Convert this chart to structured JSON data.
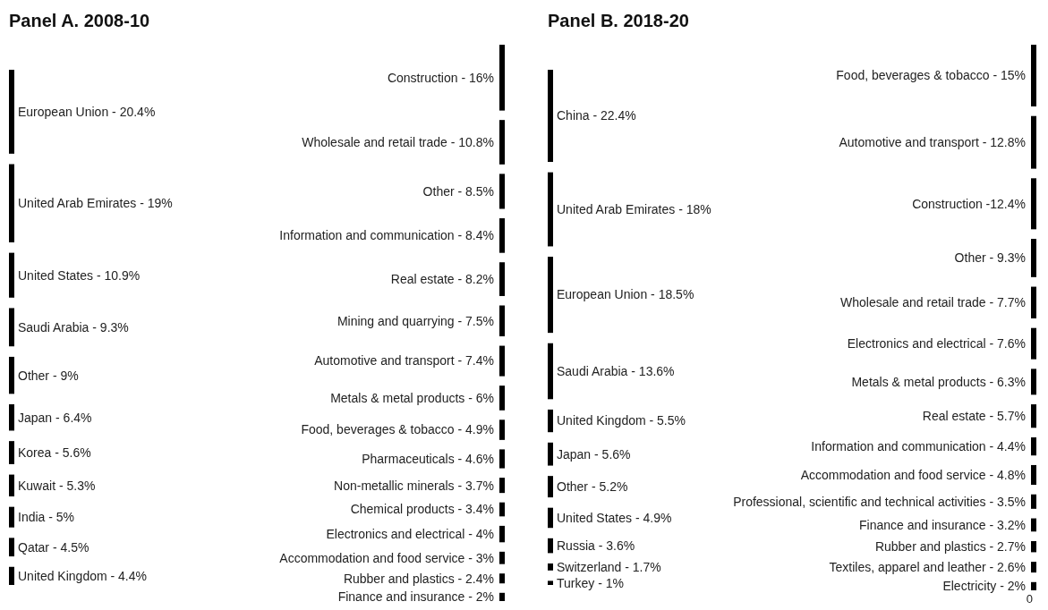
{
  "chart_data": [
    {
      "type": "other",
      "title": "Panel A. 2008-10",
      "color": "#000000",
      "categories": [
        "European Union - ",
        "United Arab Emirates - ",
        "United States - ",
        "Saudi Arabia - ",
        "Other - ",
        "Japan - ",
        "Korea - ",
        "Kuwait - ",
        "India - ",
        "Qatar - ",
        "United Kingdom - "
      ],
      "values": [
        20.4,
        19,
        10.9,
        9.3,
        9,
        6.4,
        5.6,
        5.3,
        5,
        4.5,
        4.4
      ],
      "value_labels": [
        "20.4%",
        "19%",
        "10.9%",
        "9.3%",
        "9%",
        "6.4%",
        "5.6%",
        "5.3%",
        "5%",
        "4.5%",
        "4.4%"
      ]
    },
    {
      "type": "other",
      "color": "#000000",
      "categories": [
        "Construction - ",
        "Wholesale and retail trade - ",
        "Other - ",
        "Information and communication - ",
        "Real estate - ",
        "Mining and quarrying - ",
        "Automotive and transport - ",
        "Metals & metal products - ",
        "Food, beverages & tobacco - ",
        "Pharmaceuticals - ",
        "Non-metallic minerals - ",
        "Chemical products - ",
        "Electronics and electrical - ",
        "Accommodation and food service - ",
        "Rubber and plastics - ",
        "Finance and insurance - "
      ],
      "values": [
        16,
        10.8,
        8.5,
        8.4,
        8.2,
        7.5,
        7.4,
        6,
        4.9,
        4.6,
        3.7,
        3.4,
        4,
        3,
        2.4,
        2
      ],
      "value_labels": [
        "16%",
        "10.8%",
        "8.5%",
        "8.4%",
        "8.2%",
        "7.5%",
        "7.4%",
        "6%",
        "4.9%",
        "4.6%",
        "3.7%",
        "3.4%",
        "4%",
        "3%",
        "2.4%",
        "2%"
      ]
    },
    {
      "type": "other",
      "title": "Panel B. 2018-20",
      "color": "#000000",
      "categories": [
        "China - ",
        "United Arab Emirates - ",
        "European Union - ",
        "Saudi Arabia - ",
        "United Kingdom - ",
        "Japan - ",
        "Other - ",
        "United States - ",
        "Russia - ",
        "Switzerland - ",
        "Turkey - "
      ],
      "values": [
        22.4,
        18,
        18.5,
        13.6,
        5.5,
        5.6,
        5.2,
        4.9,
        3.6,
        1.7,
        1
      ],
      "value_labels": [
        "22.4%",
        "18%",
        "18.5%",
        "13.6%",
        "5.5%",
        "5.6%",
        "5.2%",
        "4.9%",
        "3.6%",
        "1.7%",
        "1%"
      ]
    },
    {
      "type": "other",
      "color": "#000000",
      "categories": [
        "Food, beverages & tobacco - ",
        "Automotive and transport - ",
        "Construction -",
        "Other - ",
        "Wholesale and retail trade - ",
        "Electronics and electrical - ",
        "Metals & metal products - ",
        "Real estate - ",
        "Information and communication - ",
        "Accommodation and food service - ",
        "Professional, scientific and technical activities - ",
        "Finance and insurance - ",
        "Rubber and plastics - ",
        "Textiles, apparel and leather - ",
        "Electricity - "
      ],
      "values": [
        15,
        12.8,
        12.4,
        9.3,
        7.7,
        7.6,
        6.3,
        5.7,
        4.4,
        4.8,
        3.5,
        3.2,
        2.7,
        2.6,
        2
      ],
      "value_labels": [
        "15%",
        "12.8%",
        "12.4%",
        "9.3%",
        "7.7%",
        "7.6%",
        "6.3%",
        "5.7%",
        "4.4%",
        "4.8%",
        "3.5%",
        "3.2%",
        "2.7%",
        "2.6%",
        "2%"
      ],
      "annotations": [
        "0"
      ]
    }
  ]
}
